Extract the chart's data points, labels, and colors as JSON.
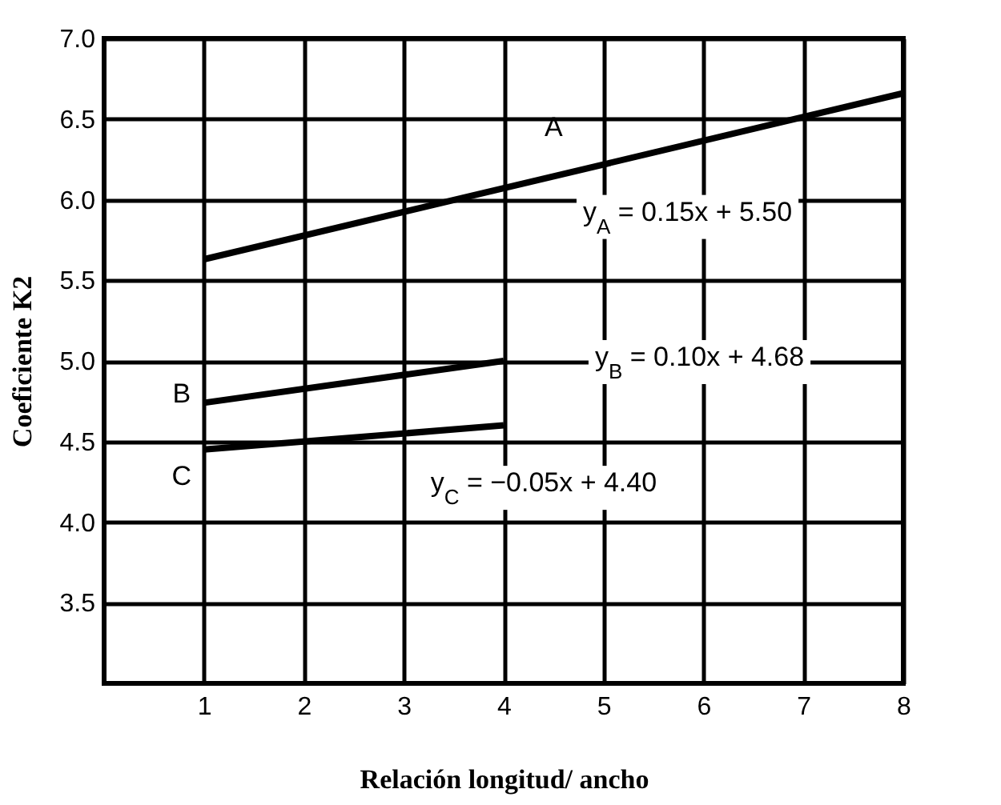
{
  "chart_data": {
    "type": "line",
    "xlabel": "Relación longitud/ ancho",
    "ylabel": "Coeficiente K2",
    "xlim": [
      0,
      8
    ],
    "xticks": [
      1,
      2,
      3,
      4,
      5,
      6,
      7,
      8
    ],
    "ylim": [
      3,
      7
    ],
    "yticks": [
      3.5,
      {
        "value": 4,
        "label": "4.0"
      },
      4.5,
      {
        "value": 5,
        "label": "5.0"
      },
      5.5,
      {
        "value": 6,
        "label": "6.0"
      },
      6.5,
      {
        "value": 7,
        "label": "7.0"
      }
    ],
    "grid": true,
    "series": [
      {
        "name": "A",
        "x": [
          1,
          8
        ],
        "values": [
          5.63,
          6.66
        ],
        "color": "#000000"
      },
      {
        "name": "B",
        "x": [
          1,
          4
        ],
        "values": [
          4.74,
          5.0
        ],
        "color": "#000000"
      },
      {
        "name": "C",
        "x": [
          1,
          4
        ],
        "values": [
          4.45,
          4.6
        ],
        "color": "#000000"
      }
    ],
    "annotations": [
      "y$_{A}$ =  0.15x + 5.50",
      "y$_{B}$ =  0.10x + 4.68",
      "y$_{C}$ =  −0.05x + 4.40"
    ]
  }
}
